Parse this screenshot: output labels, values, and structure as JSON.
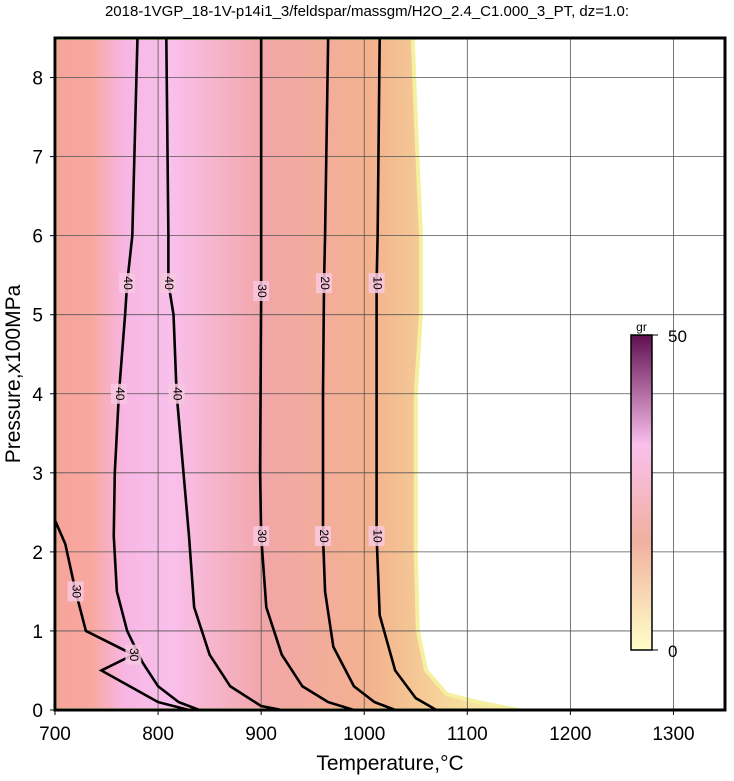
{
  "chart_data": {
    "type": "contour",
    "title": "2018-1VGP_18-1V-p14i1_3/feldspar/massgm/H2O_2.4_C1.000_3_PT, dz=1.0:",
    "x_label": "Temperature,°C",
    "y_label": "Pressure,x100MPa",
    "xlim": [
      700,
      1350
    ],
    "ylim": [
      0,
      8.5
    ],
    "xticks": [
      700,
      800,
      900,
      1000,
      1100,
      1200,
      1300
    ],
    "yticks": [
      0,
      1,
      2,
      3,
      4,
      5,
      6,
      7,
      8
    ],
    "grid": true,
    "contours": [
      {
        "level": 0,
        "x": [
          1047,
          1050,
          1055,
          1055,
          1050,
          1050,
          1050,
          1052,
          1060,
          1080,
          1110,
          1150
        ],
        "y": [
          8.5,
          7.5,
          6,
          5,
          4,
          3,
          2,
          1,
          0.5,
          0.2,
          0.1,
          0
        ]
      },
      {
        "level": 10,
        "x": [
          1015,
          1013,
          1012,
          1012,
          1012,
          1015,
          1030,
          1050,
          1070
        ],
        "y": [
          8.5,
          6,
          5.4,
          4,
          2.2,
          1.2,
          0.5,
          0.15,
          0
        ]
      },
      {
        "level": 20,
        "x": [
          965,
          962,
          961,
          960,
          960,
          962,
          970,
          990,
          1010,
          1030
        ],
        "y": [
          8.5,
          6,
          5.4,
          4,
          2.2,
          1.5,
          0.8,
          0.3,
          0.1,
          0
        ]
      },
      {
        "level": 30,
        "x": [
          900,
          900,
          900,
          899,
          900,
          905,
          920,
          940,
          965,
          990
        ],
        "y": [
          8.5,
          6,
          5.3,
          3,
          2.2,
          1.3,
          0.7,
          0.3,
          0.1,
          0
        ]
      },
      {
        "level": 40,
        "x": [
          808,
          810,
          810,
          815,
          818,
          830,
          835,
          850,
          870,
          900,
          920
        ],
        "y": [
          8.5,
          6,
          5.4,
          5,
          4,
          2.2,
          1.3,
          0.7,
          0.3,
          0.05,
          0
        ]
      },
      {
        "level": 40,
        "x": [
          780,
          775,
          770,
          768,
          762,
          758,
          757,
          760,
          770,
          785,
          800,
          820,
          840
        ],
        "y": [
          8.5,
          6,
          5.4,
          5,
          4,
          3,
          2.2,
          1.5,
          1,
          0.6,
          0.3,
          0.1,
          0
        ]
      },
      {
        "level": 30,
        "x": [
          700,
          710,
          720,
          730,
          776,
          745,
          800,
          830
        ],
        "y": [
          2.4,
          2.1,
          1.5,
          1,
          0.7,
          0.5,
          0.1,
          0
        ]
      }
    ],
    "colorbar": {
      "label": "gr",
      "lim": [
        0,
        50
      ],
      "ticks": [
        0,
        50
      ]
    }
  }
}
